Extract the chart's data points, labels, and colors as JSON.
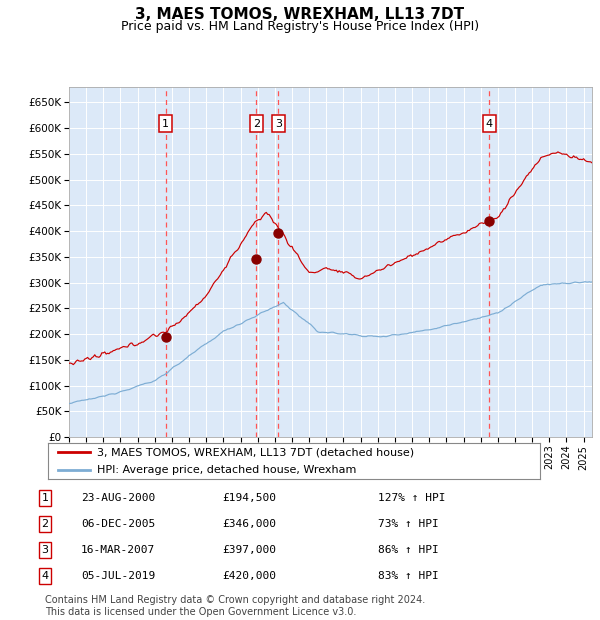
{
  "title": "3, MAES TOMOS, WREXHAM, LL13 7DT",
  "subtitle": "Price paid vs. HM Land Registry's House Price Index (HPI)",
  "title_fontsize": 11,
  "subtitle_fontsize": 9,
  "plot_bg_color": "#dce9f8",
  "red_line_color": "#cc0000",
  "blue_line_color": "#7dadd4",
  "marker_color": "#880000",
  "vline_color": "#ff5555",
  "grid_color": "#ffffff",
  "legend_line1": "3, MAES TOMOS, WREXHAM, LL13 7DT (detached house)",
  "legend_line2": "HPI: Average price, detached house, Wrexham",
  "purchases": [
    {
      "num": 1,
      "date_label": "23-AUG-2000",
      "date_decimal": 2000.64,
      "price": 194500,
      "pct": "127%",
      "dir": "↑"
    },
    {
      "num": 2,
      "date_label": "06-DEC-2005",
      "date_decimal": 2005.93,
      "price": 346000,
      "pct": "73%",
      "dir": "↑"
    },
    {
      "num": 3,
      "date_label": "16-MAR-2007",
      "date_decimal": 2007.21,
      "price": 397000,
      "pct": "86%",
      "dir": "↑"
    },
    {
      "num": 4,
      "date_label": "05-JUL-2019",
      "date_decimal": 2019.51,
      "price": 420000,
      "pct": "83%",
      "dir": "↑"
    }
  ],
  "ylim": [
    0,
    680000
  ],
  "xlim": [
    1995.0,
    2025.5
  ],
  "yticks": [
    0,
    50000,
    100000,
    150000,
    200000,
    250000,
    300000,
    350000,
    400000,
    450000,
    500000,
    550000,
    600000,
    650000
  ],
  "ytick_labels": [
    "£0",
    "£50K",
    "£100K",
    "£150K",
    "£200K",
    "£250K",
    "£300K",
    "£350K",
    "£400K",
    "£450K",
    "£500K",
    "£550K",
    "£600K",
    "£650K"
  ],
  "copyright_text": "Contains HM Land Registry data © Crown copyright and database right 2024.\nThis data is licensed under the Open Government Licence v3.0.",
  "footer_fontsize": 7
}
